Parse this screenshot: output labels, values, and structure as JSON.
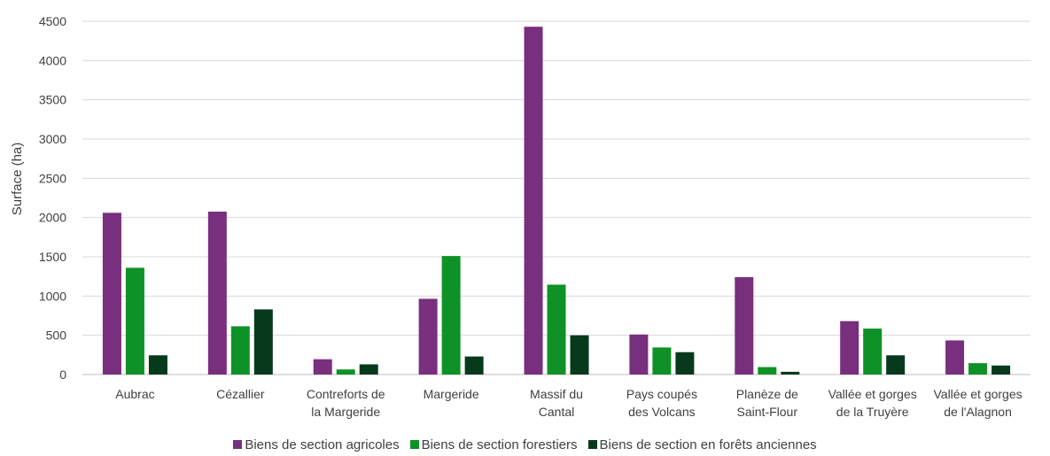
{
  "chart_data": {
    "type": "bar",
    "title": "",
    "xlabel": "",
    "ylabel": "Surface (ha)",
    "ylim": [
      0,
      4500
    ],
    "yticks": [
      0,
      500,
      1000,
      1500,
      2000,
      2500,
      3000,
      3500,
      4000,
      4500
    ],
    "grid": true,
    "legend_position": "bottom",
    "categories": [
      [
        "Aubrac"
      ],
      [
        "Cézallier"
      ],
      [
        "Contreforts de",
        "la Margeride"
      ],
      [
        "Margeride"
      ],
      [
        "Massif du",
        "Cantal"
      ],
      [
        "Pays coupés",
        "des Volcans"
      ],
      [
        "Planèze de",
        "Saint-Flour"
      ],
      [
        "Vallée et gorges",
        "de la Truyère"
      ],
      [
        "Vallée et gorges",
        "de l'Alagnon"
      ]
    ],
    "series": [
      {
        "name": "Biens de section agricoles",
        "color": "#782f7e",
        "values": [
          2060,
          2075,
          195,
          965,
          4430,
          510,
          1240,
          680,
          435
        ]
      },
      {
        "name": "Biens de section forestiers",
        "color": "#0e9227",
        "values": [
          1360,
          615,
          65,
          1510,
          1145,
          345,
          95,
          585,
          145
        ]
      },
      {
        "name": "Biens de section en forêts anciennes",
        "color": "#073a1d",
        "values": [
          245,
          830,
          130,
          230,
          500,
          285,
          35,
          245,
          115
        ]
      }
    ]
  }
}
